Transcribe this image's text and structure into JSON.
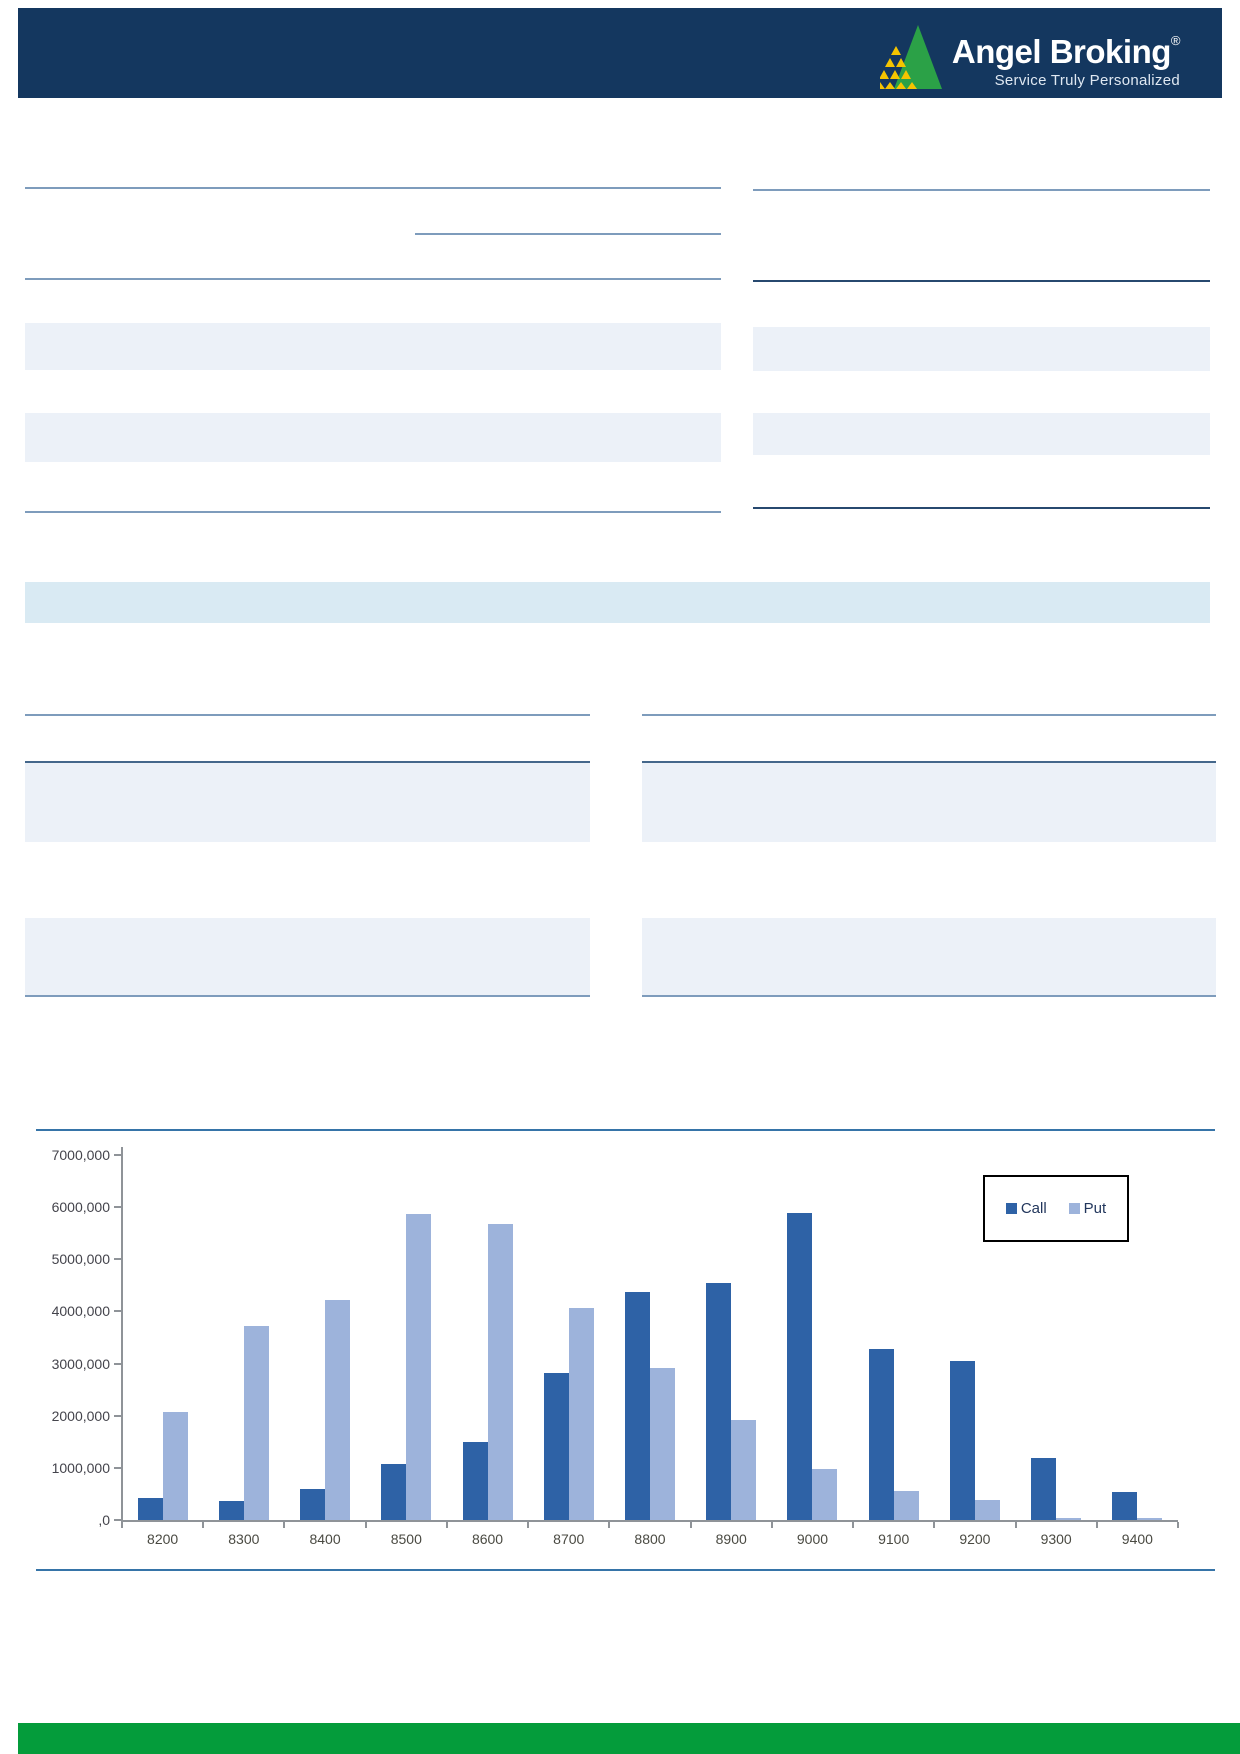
{
  "header": {
    "brand": "Angel Broking",
    "reg_mark": "®",
    "tagline": "Service Truly Personalized"
  },
  "colors": {
    "header_bg": "#14375F",
    "logo_green": "#2BA147",
    "logo_yellow": "#F5C400",
    "rule_steel": "#7E9CBC",
    "rule_navy": "#27496F",
    "row_band": "#ECF1F8",
    "section_band": "#D9EAF3",
    "chart_rule": "#3674A8",
    "axis_gray": "#8F9398",
    "footer_green": "#049C3B",
    "call_bar": "#2E62A6",
    "put_bar": "#9DB3DB"
  },
  "chart_data": {
    "type": "bar",
    "title": "",
    "xlabel": "",
    "ylabel": "",
    "grid": false,
    "legend_position": "top-right",
    "ylim": [
      0,
      7000000
    ],
    "y_tick_labels": [
      "7000,000",
      "6000,000",
      "5000,000",
      "4000,000",
      "3000,000",
      "2000,000",
      "1000,000",
      ",0"
    ],
    "categories": [
      "8200",
      "8300",
      "8400",
      "8500",
      "8600",
      "8700",
      "8800",
      "8900",
      "9000",
      "9100",
      "9200",
      "9300",
      "9400"
    ],
    "series": [
      {
        "name": "Call",
        "color": "#2E62A6",
        "values": [
          420000,
          360000,
          600000,
          1070000,
          1500000,
          2820000,
          4380000,
          4550000,
          5880000,
          3280000,
          3050000,
          1180000,
          530000
        ]
      },
      {
        "name": "Put",
        "color": "#9DB3DB",
        "values": [
          2070000,
          3720000,
          4220000,
          5860000,
          5670000,
          4070000,
          2920000,
          1920000,
          980000,
          550000,
          380000,
          40000,
          40000
        ]
      }
    ]
  }
}
